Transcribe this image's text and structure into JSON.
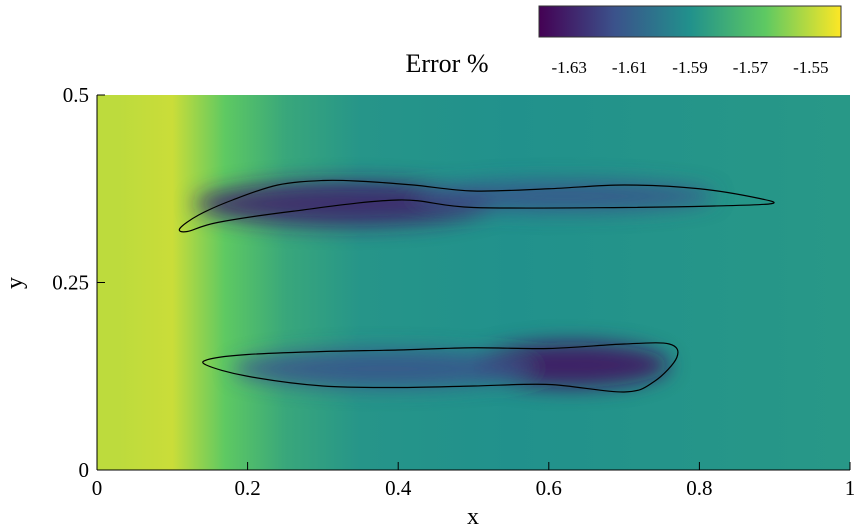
{
  "chart_data": {
    "type": "heatmap",
    "colorbar": {
      "title": "Error %",
      "ticks": [
        "-1.63",
        "-1.61",
        "-1.59",
        "-1.57",
        "-1.55"
      ],
      "tick_values": [
        -1.63,
        -1.61,
        -1.59,
        -1.57,
        -1.55
      ],
      "range": [
        -1.64,
        -1.54
      ],
      "colormap": [
        "#440154",
        "#3b528b",
        "#21918c",
        "#5ec962",
        "#fde725"
      ]
    },
    "xlabel": "x",
    "ylabel": "y",
    "xlim": [
      0,
      1
    ],
    "ylim": [
      0,
      0.5
    ],
    "x_ticks": [
      {
        "value": 0,
        "label": "0"
      },
      {
        "value": 0.2,
        "label": "0.2"
      },
      {
        "value": 0.4,
        "label": "0.4"
      },
      {
        "value": 0.6,
        "label": "0.6"
      },
      {
        "value": 0.8,
        "label": "0.8"
      },
      {
        "value": 1,
        "label": "1"
      }
    ],
    "y_ticks": [
      {
        "value": 0,
        "label": "0"
      },
      {
        "value": 0.25,
        "label": "0.25"
      },
      {
        "value": 0.5,
        "label": "0.5"
      }
    ],
    "field": {
      "description_values": {
        "left_edge_max": -1.55,
        "background": -1.59,
        "contour_core_min": -1.63
      }
    },
    "contours": [
      {
        "name": "upper",
        "points": [
          [
            0.12,
            0.318
          ],
          [
            0.16,
            0.33
          ],
          [
            0.26,
            0.345
          ],
          [
            0.4,
            0.36
          ],
          [
            0.5,
            0.35
          ],
          [
            0.7,
            0.35
          ],
          [
            0.82,
            0.352
          ],
          [
            0.895,
            0.355
          ],
          [
            0.88,
            0.362
          ],
          [
            0.8,
            0.375
          ],
          [
            0.7,
            0.38
          ],
          [
            0.6,
            0.375
          ],
          [
            0.5,
            0.372
          ],
          [
            0.42,
            0.38
          ],
          [
            0.35,
            0.385
          ],
          [
            0.3,
            0.386
          ],
          [
            0.24,
            0.38
          ],
          [
            0.18,
            0.36
          ],
          [
            0.135,
            0.34
          ],
          [
            0.11,
            0.322
          ]
        ],
        "value": -1.61
      },
      {
        "name": "lower",
        "points": [
          [
            0.145,
            0.14
          ],
          [
            0.2,
            0.125
          ],
          [
            0.3,
            0.112
          ],
          [
            0.4,
            0.11
          ],
          [
            0.5,
            0.112
          ],
          [
            0.6,
            0.114
          ],
          [
            0.7,
            0.104
          ],
          [
            0.74,
            0.118
          ],
          [
            0.77,
            0.15
          ],
          [
            0.76,
            0.168
          ],
          [
            0.7,
            0.168
          ],
          [
            0.6,
            0.162
          ],
          [
            0.5,
            0.163
          ],
          [
            0.4,
            0.16
          ],
          [
            0.3,
            0.158
          ],
          [
            0.2,
            0.154
          ],
          [
            0.15,
            0.148
          ]
        ],
        "value": -1.61
      }
    ],
    "low_regions": [
      {
        "cx": 0.33,
        "cy": 0.355,
        "rx": 0.2,
        "ry": 0.03,
        "value": -1.63
      },
      {
        "cx": 0.62,
        "cy": 0.365,
        "rx": 0.2,
        "ry": 0.02,
        "value": -1.615
      },
      {
        "cx": 0.63,
        "cy": 0.14,
        "rx": 0.13,
        "ry": 0.03,
        "value": -1.635
      },
      {
        "cx": 0.38,
        "cy": 0.135,
        "rx": 0.2,
        "ry": 0.025,
        "value": -1.615
      }
    ],
    "grid": false
  }
}
